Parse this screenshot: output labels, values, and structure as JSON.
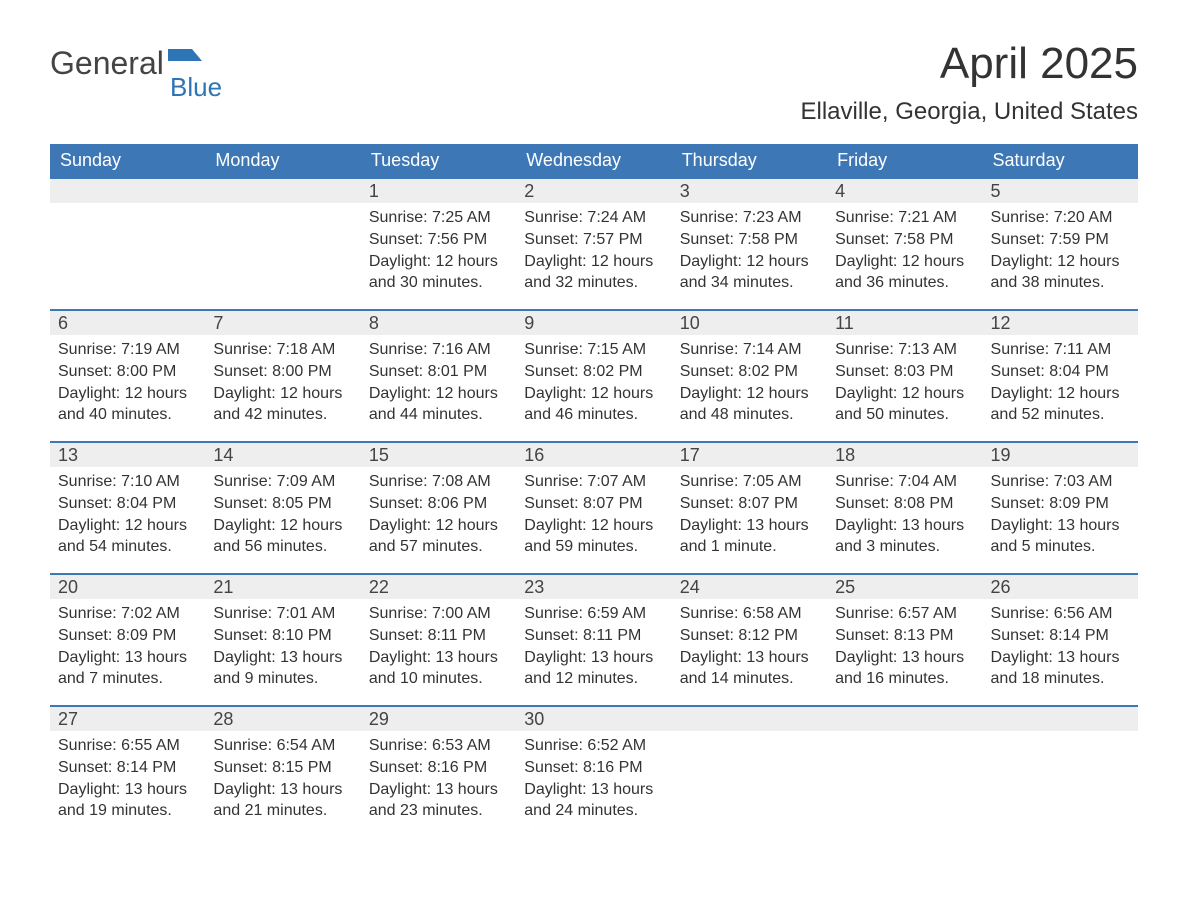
{
  "logo": {
    "text_general": "General",
    "text_blue": "Blue",
    "icon_color": "#2e75b6"
  },
  "title": {
    "month": "April 2025",
    "location": "Ellaville, Georgia, United States"
  },
  "colors": {
    "header_bg": "#3d77b6",
    "header_text": "#ffffff",
    "daynum_bg": "#eeeeee",
    "week_border": "#3d77b6",
    "body_text": "#333333",
    "logo_blue": "#2e75b6",
    "background": "#ffffff"
  },
  "typography": {
    "month_title_fontsize": 44,
    "location_fontsize": 24,
    "dayheader_fontsize": 18,
    "daynum_fontsize": 18,
    "body_fontsize": 16
  },
  "day_headers": [
    "Sunday",
    "Monday",
    "Tuesday",
    "Wednesday",
    "Thursday",
    "Friday",
    "Saturday"
  ],
  "labels": {
    "sunrise": "Sunrise:",
    "sunset": "Sunset:",
    "daylight": "Daylight:"
  },
  "weeks": [
    [
      null,
      null,
      {
        "n": "1",
        "sunrise": "7:25 AM",
        "sunset": "7:56 PM",
        "daylight": "12 hours and 30 minutes."
      },
      {
        "n": "2",
        "sunrise": "7:24 AM",
        "sunset": "7:57 PM",
        "daylight": "12 hours and 32 minutes."
      },
      {
        "n": "3",
        "sunrise": "7:23 AM",
        "sunset": "7:58 PM",
        "daylight": "12 hours and 34 minutes."
      },
      {
        "n": "4",
        "sunrise": "7:21 AM",
        "sunset": "7:58 PM",
        "daylight": "12 hours and 36 minutes."
      },
      {
        "n": "5",
        "sunrise": "7:20 AM",
        "sunset": "7:59 PM",
        "daylight": "12 hours and 38 minutes."
      }
    ],
    [
      {
        "n": "6",
        "sunrise": "7:19 AM",
        "sunset": "8:00 PM",
        "daylight": "12 hours and 40 minutes."
      },
      {
        "n": "7",
        "sunrise": "7:18 AM",
        "sunset": "8:00 PM",
        "daylight": "12 hours and 42 minutes."
      },
      {
        "n": "8",
        "sunrise": "7:16 AM",
        "sunset": "8:01 PM",
        "daylight": "12 hours and 44 minutes."
      },
      {
        "n": "9",
        "sunrise": "7:15 AM",
        "sunset": "8:02 PM",
        "daylight": "12 hours and 46 minutes."
      },
      {
        "n": "10",
        "sunrise": "7:14 AM",
        "sunset": "8:02 PM",
        "daylight": "12 hours and 48 minutes."
      },
      {
        "n": "11",
        "sunrise": "7:13 AM",
        "sunset": "8:03 PM",
        "daylight": "12 hours and 50 minutes."
      },
      {
        "n": "12",
        "sunrise": "7:11 AM",
        "sunset": "8:04 PM",
        "daylight": "12 hours and 52 minutes."
      }
    ],
    [
      {
        "n": "13",
        "sunrise": "7:10 AM",
        "sunset": "8:04 PM",
        "daylight": "12 hours and 54 minutes."
      },
      {
        "n": "14",
        "sunrise": "7:09 AM",
        "sunset": "8:05 PM",
        "daylight": "12 hours and 56 minutes."
      },
      {
        "n": "15",
        "sunrise": "7:08 AM",
        "sunset": "8:06 PM",
        "daylight": "12 hours and 57 minutes."
      },
      {
        "n": "16",
        "sunrise": "7:07 AM",
        "sunset": "8:07 PM",
        "daylight": "12 hours and 59 minutes."
      },
      {
        "n": "17",
        "sunrise": "7:05 AM",
        "sunset": "8:07 PM",
        "daylight": "13 hours and 1 minute."
      },
      {
        "n": "18",
        "sunrise": "7:04 AM",
        "sunset": "8:08 PM",
        "daylight": "13 hours and 3 minutes."
      },
      {
        "n": "19",
        "sunrise": "7:03 AM",
        "sunset": "8:09 PM",
        "daylight": "13 hours and 5 minutes."
      }
    ],
    [
      {
        "n": "20",
        "sunrise": "7:02 AM",
        "sunset": "8:09 PM",
        "daylight": "13 hours and 7 minutes."
      },
      {
        "n": "21",
        "sunrise": "7:01 AM",
        "sunset": "8:10 PM",
        "daylight": "13 hours and 9 minutes."
      },
      {
        "n": "22",
        "sunrise": "7:00 AM",
        "sunset": "8:11 PM",
        "daylight": "13 hours and 10 minutes."
      },
      {
        "n": "23",
        "sunrise": "6:59 AM",
        "sunset": "8:11 PM",
        "daylight": "13 hours and 12 minutes."
      },
      {
        "n": "24",
        "sunrise": "6:58 AM",
        "sunset": "8:12 PM",
        "daylight": "13 hours and 14 minutes."
      },
      {
        "n": "25",
        "sunrise": "6:57 AM",
        "sunset": "8:13 PM",
        "daylight": "13 hours and 16 minutes."
      },
      {
        "n": "26",
        "sunrise": "6:56 AM",
        "sunset": "8:14 PM",
        "daylight": "13 hours and 18 minutes."
      }
    ],
    [
      {
        "n": "27",
        "sunrise": "6:55 AM",
        "sunset": "8:14 PM",
        "daylight": "13 hours and 19 minutes."
      },
      {
        "n": "28",
        "sunrise": "6:54 AM",
        "sunset": "8:15 PM",
        "daylight": "13 hours and 21 minutes."
      },
      {
        "n": "29",
        "sunrise": "6:53 AM",
        "sunset": "8:16 PM",
        "daylight": "13 hours and 23 minutes."
      },
      {
        "n": "30",
        "sunrise": "6:52 AM",
        "sunset": "8:16 PM",
        "daylight": "13 hours and 24 minutes."
      },
      null,
      null,
      null
    ]
  ]
}
